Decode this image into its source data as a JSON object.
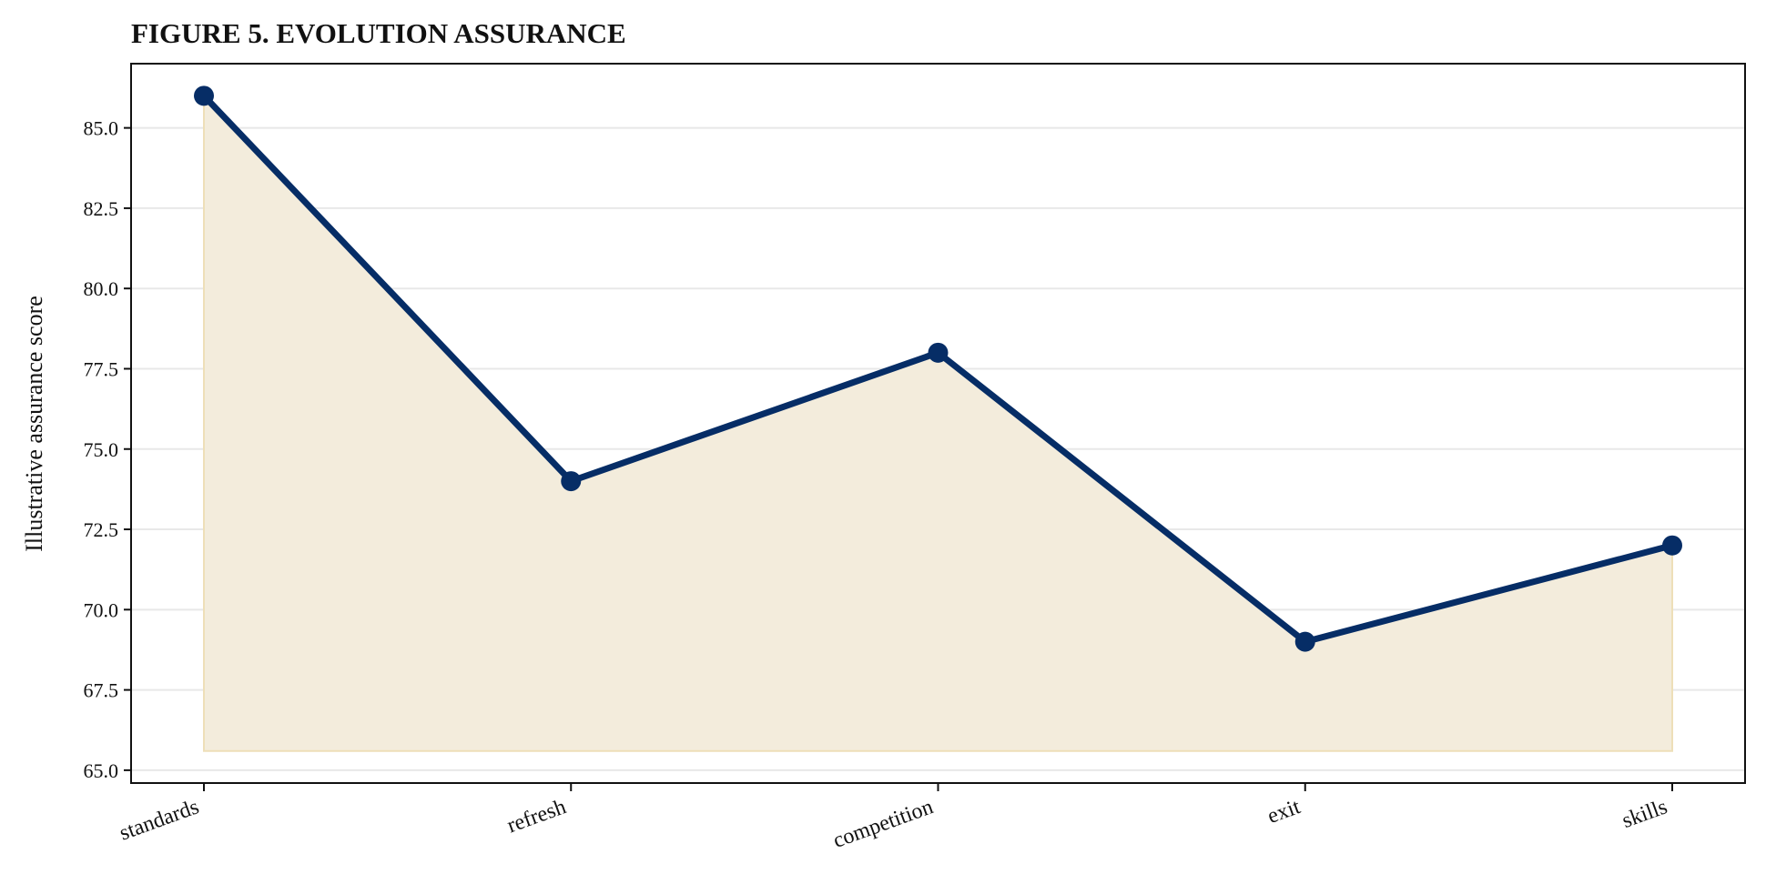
{
  "chart_data": {
    "type": "area",
    "title": "FIGURE 5. EVOLUTION ASSURANCE",
    "xlabel": "",
    "ylabel": "Illustrative assurance score",
    "categories": [
      "standards",
      "refresh",
      "competition",
      "exit",
      "skills"
    ],
    "series": [
      {
        "values": [
          86,
          74,
          78,
          69,
          72
        ]
      }
    ],
    "fill_baseline": 65.6,
    "ylim": [
      64.6,
      87.0
    ],
    "yticks": [
      "65.0",
      "67.5",
      "70.0",
      "72.5",
      "75.0",
      "77.5",
      "80.0",
      "82.5",
      "85.0"
    ],
    "grid": "horizontal",
    "colors": {
      "line": "#062d66",
      "fill": "#f3ecdc",
      "fill_edge": "#eedfb8",
      "grid": "#e8e8e8",
      "axis": "#111111"
    }
  }
}
